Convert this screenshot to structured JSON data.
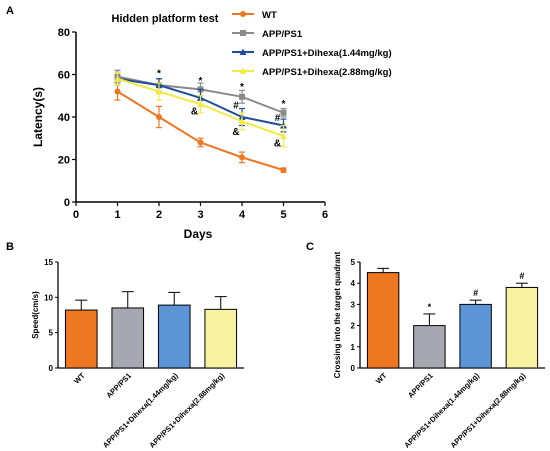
{
  "colors": {
    "wt": "#ee7722",
    "app": "#8a8a8a",
    "d144": "#1f4e9a",
    "d288": "#f2ea45",
    "d144_bar": "#5b95d6",
    "d288_bar": "#f6f2a2",
    "app_bar": "#a7a7b1"
  },
  "chart_data": [
    {
      "panel": "A",
      "type": "line",
      "title": "Hidden platform test",
      "xlabel": "Days",
      "ylabel": "Latency(s)",
      "xlim": [
        0,
        6
      ],
      "ylim": [
        0,
        80
      ],
      "xticks": [
        "0",
        "1",
        "2",
        "3",
        "4",
        "5",
        "6"
      ],
      "yticks": [
        "0",
        "20",
        "40",
        "60",
        "80"
      ],
      "legend_position": "top-right",
      "series": [
        {
          "name": "WT",
          "x": [
            1,
            2,
            3,
            4,
            5
          ],
          "values": [
            52,
            40,
            28,
            21,
            15
          ],
          "err": [
            4,
            5,
            2,
            2.5,
            1
          ]
        },
        {
          "name": "APP/PS1",
          "x": [
            1,
            2,
            3,
            4,
            5
          ],
          "values": [
            59,
            55,
            53,
            49.5,
            42
          ],
          "err": [
            3,
            3,
            3,
            3,
            2
          ]
        },
        {
          "name": "APP/PS1+Dihexa(1.44mg/kg)",
          "x": [
            1,
            2,
            3,
            4,
            5
          ],
          "values": [
            58,
            55,
            49,
            40,
            36
          ],
          "err": [
            3,
            3,
            4,
            4,
            3
          ]
        },
        {
          "name": "APP/PS1+Dihexa(2.88mg/kg)",
          "x": [
            1,
            2,
            3,
            4,
            5
          ],
          "values": [
            58,
            52,
            46,
            38,
            31
          ],
          "err": [
            3,
            4,
            4,
            4,
            5
          ]
        }
      ],
      "annotations": [
        {
          "x": 2,
          "y": 61,
          "text": "*"
        },
        {
          "x": 3,
          "y": 57.5,
          "text": "*"
        },
        {
          "x": 3,
          "y": 43,
          "text": "&"
        },
        {
          "x": 4,
          "y": 54.5,
          "text": "*"
        },
        {
          "x": 4,
          "y": 46,
          "text": "#"
        },
        {
          "x": 4,
          "y": 33.5,
          "text": "&"
        },
        {
          "x": 5,
          "y": 46.5,
          "text": "*"
        },
        {
          "x": 5,
          "y": 40,
          "text": "#"
        },
        {
          "x": 5,
          "y": 28,
          "text": "&"
        }
      ]
    },
    {
      "panel": "B",
      "type": "bar",
      "ylabel": "Speed(cm/s)",
      "ylim": [
        0,
        15
      ],
      "yticks": [
        "0",
        "5",
        "10",
        "15"
      ],
      "categories": [
        "WT",
        "APP/PS1",
        "APP/PS1+Dihexa(1.44mg/kg)",
        "APP/PS1+Dihexa(2.88mg/kg)"
      ],
      "values": [
        8.2,
        8.5,
        8.9,
        8.3
      ],
      "err": [
        1.4,
        2.3,
        1.8,
        1.8
      ],
      "annotations": []
    },
    {
      "panel": "C",
      "type": "bar",
      "ylabel": "Crossing into the  target quadrant",
      "ylim": [
        0,
        5
      ],
      "yticks": [
        "0",
        "1",
        "2",
        "3",
        "4",
        "5"
      ],
      "categories": [
        "WT",
        "APP/PS1",
        "APP/PS1+Dihexa(1.44mg/kg)",
        "APP/PS1+Dihexa(2.88mg/kg)"
      ],
      "values": [
        4.5,
        2.0,
        3.0,
        3.8
      ],
      "err": [
        0.2,
        0.55,
        0.2,
        0.2
      ],
      "annotations": [
        {
          "bar": 1,
          "text": "*"
        },
        {
          "bar": 2,
          "text": "#"
        },
        {
          "bar": 3,
          "text": "#"
        }
      ]
    }
  ]
}
